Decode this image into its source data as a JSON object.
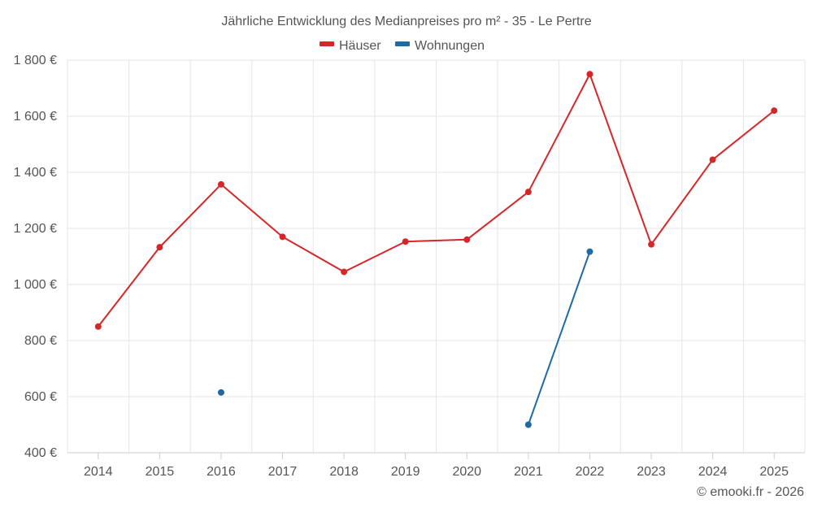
{
  "chart_data": {
    "type": "line",
    "title": "Jährliche Entwicklung des Medianpreises pro m² - 35 - Le Pertre",
    "categories": [
      "2014",
      "2015",
      "2016",
      "2017",
      "2018",
      "2019",
      "2020",
      "2021",
      "2022",
      "2023",
      "2024",
      "2025"
    ],
    "ylim": [
      400,
      1800
    ],
    "yticks": [
      400,
      600,
      800,
      1000,
      1200,
      1400,
      1600,
      1800
    ],
    "ytick_labels": [
      "400 €",
      "600 €",
      "800 €",
      "1 000 €",
      "1 200 €",
      "1 400 €",
      "1 600 €",
      "1 800 €"
    ],
    "grid": true,
    "legend_position": "top-center",
    "series": [
      {
        "name": "Häuser",
        "color": "#d62728",
        "values": [
          850,
          1133,
          1357,
          1170,
          1045,
          1153,
          1160,
          1330,
          1750,
          1143,
          1445,
          1620
        ]
      },
      {
        "name": "Wohnungen",
        "color": "#1f6aa5",
        "values": [
          null,
          null,
          615,
          null,
          null,
          null,
          null,
          500,
          1117,
          null,
          null,
          null
        ]
      }
    ],
    "credit": "© emooki.fr - 2026"
  }
}
